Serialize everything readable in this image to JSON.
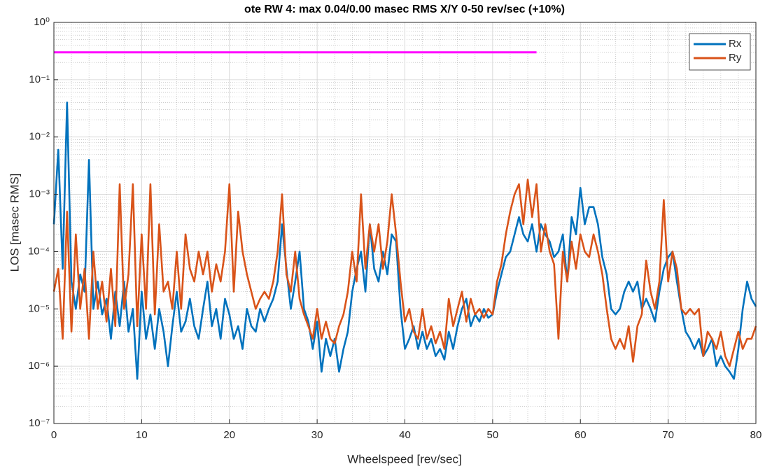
{
  "chart_data": {
    "type": "line",
    "title": "ote RW 4: max 0.04/0.00 masec RMS X/Y 0-50 rev/sec (+10%)",
    "x_label": "Wheelspeed [rev/sec]",
    "y_label": "LOS [masec RMS]",
    "log_y": true,
    "grid": true,
    "minor_grid": true,
    "legend": "northeast",
    "xlim": [
      0,
      80
    ],
    "xticks": [
      0,
      10,
      20,
      30,
      40,
      50,
      60,
      70,
      80
    ],
    "ylim": [
      1e-07,
      1
    ],
    "yticks": [
      {
        "value": 1e-07,
        "label": "10⁻⁷"
      },
      {
        "value": 1e-06,
        "label": "10⁻⁶"
      },
      {
        "value": 1e-05,
        "label": "10⁻⁵"
      },
      {
        "value": 0.0001,
        "label": "10⁻⁴"
      },
      {
        "value": 0.001,
        "label": "10⁻³"
      },
      {
        "value": 0.01,
        "label": "10⁻²"
      },
      {
        "value": 0.1,
        "label": "10⁻¹"
      },
      {
        "value": 1,
        "label": "10⁰"
      }
    ],
    "reference_line": {
      "x": [
        0,
        55
      ],
      "y": 0.3,
      "color": "#ff00ff"
    },
    "x": [
      0,
      0.5,
      1,
      1.5,
      2,
      2.5,
      3,
      3.5,
      4,
      4.5,
      5,
      5.5,
      6,
      6.5,
      7,
      7.5,
      8,
      8.5,
      9,
      9.5,
      10,
      10.5,
      11,
      11.5,
      12,
      12.5,
      13,
      13.5,
      14,
      14.5,
      15,
      15.5,
      16,
      16.5,
      17,
      17.5,
      18,
      18.5,
      19,
      19.5,
      20,
      20.5,
      21,
      21.5,
      22,
      22.5,
      23,
      23.5,
      24,
      24.5,
      25,
      25.5,
      26,
      26.5,
      27,
      27.5,
      28,
      28.5,
      29,
      29.5,
      30,
      30.5,
      31,
      31.5,
      32,
      32.5,
      33,
      33.5,
      34,
      34.5,
      35,
      35.5,
      36,
      36.5,
      37,
      37.5,
      38,
      38.5,
      39,
      39.5,
      40,
      40.5,
      41,
      41.5,
      42,
      42.5,
      43,
      43.5,
      44,
      44.5,
      45,
      45.5,
      46,
      46.5,
      47,
      47.5,
      48,
      48.5,
      49,
      49.5,
      50,
      50.5,
      51,
      51.5,
      52,
      52.5,
      53,
      53.5,
      54,
      54.5,
      55,
      55.5,
      56,
      56.5,
      57,
      57.5,
      58,
      58.5,
      59,
      59.5,
      60,
      60.5,
      61,
      61.5,
      62,
      62.5,
      63,
      63.5,
      64,
      64.5,
      65,
      65.5,
      66,
      66.5,
      67,
      67.5,
      68,
      68.5,
      69,
      69.5,
      70,
      70.5,
      71,
      71.5,
      72,
      72.5,
      73,
      73.5,
      74,
      74.5,
      75,
      75.5,
      76,
      76.5,
      77,
      77.5,
      78,
      78.5,
      79,
      79.5,
      80
    ],
    "series": [
      {
        "name": "Rx",
        "color": "#0072bd",
        "values": [
          0.0003,
          0.006,
          5e-05,
          0.04,
          3e-05,
          1e-05,
          4e-05,
          2e-05,
          0.004,
          1e-05,
          3e-05,
          8e-06,
          1.5e-05,
          3e-06,
          2e-05,
          5e-06,
          3e-05,
          4e-06,
          1e-05,
          6e-07,
          2e-05,
          3e-06,
          8e-06,
          2e-06,
          1e-05,
          4e-06,
          1e-06,
          5e-06,
          2e-05,
          4e-06,
          6e-06,
          1.5e-05,
          5e-06,
          3e-06,
          1e-05,
          3e-05,
          5e-06,
          1e-05,
          3e-06,
          1.5e-05,
          8e-06,
          3e-06,
          5e-06,
          2e-06,
          1e-05,
          5e-06,
          4e-06,
          1e-05,
          6e-06,
          1e-05,
          1.5e-05,
          3e-05,
          0.0003,
          5e-05,
          1e-05,
          3e-05,
          0.0001,
          1e-05,
          6e-06,
          2e-06,
          6e-06,
          8e-07,
          3e-06,
          1.5e-06,
          3e-06,
          8e-07,
          2e-06,
          4e-06,
          2e-05,
          5e-05,
          0.0001,
          2e-05,
          0.0003,
          5e-05,
          3e-05,
          0.0001,
          4e-05,
          0.0002,
          0.00015,
          1e-05,
          2e-06,
          3e-06,
          5e-06,
          2e-06,
          4e-06,
          2e-06,
          3e-06,
          1.5e-06,
          2e-06,
          1.3e-06,
          4e-06,
          2e-06,
          5e-06,
          1e-05,
          1.5e-05,
          5e-06,
          8e-06,
          6e-06,
          1e-05,
          7e-06,
          8e-06,
          2e-05,
          4e-05,
          8e-05,
          0.0001,
          0.0002,
          0.0004,
          0.0002,
          0.00015,
          0.0003,
          0.0001,
          0.0003,
          0.0002,
          0.00015,
          8e-05,
          0.0001,
          0.0002,
          3e-05,
          0.0004,
          0.0002,
          0.0013,
          0.0003,
          0.0006,
          0.0006,
          0.0003,
          8e-05,
          4e-05,
          1e-05,
          8e-06,
          1e-05,
          2e-05,
          3e-05,
          2e-05,
          3e-05,
          1e-05,
          1.5e-05,
          1e-05,
          6e-06,
          2e-05,
          5e-05,
          8e-05,
          0.0001,
          3e-05,
          1e-05,
          4e-06,
          3e-06,
          2e-06,
          3e-06,
          1.5e-06,
          2e-06,
          3e-06,
          1e-06,
          1.5e-06,
          1e-06,
          8e-07,
          6e-07,
          2e-06,
          1e-05,
          3e-05,
          1.5e-05,
          1.1e-05
        ]
      },
      {
        "name": "Ry",
        "color": "#d95319",
        "values": [
          2e-05,
          5e-05,
          3e-06,
          0.0005,
          4e-06,
          0.0002,
          1e-05,
          5e-05,
          3e-06,
          0.0001,
          1e-05,
          3e-05,
          6e-06,
          5e-05,
          5e-06,
          0.0015,
          1e-05,
          4e-05,
          0.0015,
          5e-06,
          0.0002,
          1e-05,
          0.0015,
          8e-06,
          0.0003,
          2e-05,
          3e-05,
          1e-05,
          0.0001,
          1e-05,
          0.0002,
          5e-05,
          3e-05,
          0.0001,
          4e-05,
          0.0001,
          2e-05,
          6e-05,
          3e-05,
          0.0001,
          0.0015,
          2e-05,
          0.0005,
          0.0001,
          4e-05,
          2e-05,
          1e-05,
          1.5e-05,
          2e-05,
          1.5e-05,
          3e-05,
          0.0001,
          0.001,
          4e-05,
          2e-05,
          0.0001,
          1.5e-05,
          8e-06,
          5e-06,
          3e-06,
          1e-05,
          3e-06,
          6e-06,
          3e-06,
          2.5e-06,
          5e-06,
          8e-06,
          2e-05,
          0.0001,
          3e-05,
          0.001,
          5e-05,
          0.0003,
          0.0001,
          0.0003,
          5e-05,
          0.00015,
          0.001,
          0.0002,
          3e-05,
          6e-06,
          1e-05,
          4e-06,
          3e-06,
          1e-05,
          3e-06,
          5e-06,
          2.5e-06,
          4e-06,
          2e-06,
          1.5e-05,
          5e-06,
          1e-05,
          2e-05,
          6e-06,
          1.5e-05,
          8e-06,
          1e-05,
          7e-06,
          1e-05,
          8e-06,
          3e-05,
          6e-05,
          0.0002,
          0.0005,
          0.001,
          0.0015,
          0.0003,
          0.0018,
          0.0004,
          0.0015,
          0.0001,
          0.0003,
          0.0001,
          6e-05,
          3e-06,
          0.0001,
          3e-05,
          0.00015,
          5e-05,
          0.0002,
          0.0001,
          8e-05,
          0.0002,
          0.0001,
          4e-05,
          1e-05,
          3e-06,
          2e-06,
          3e-06,
          2e-06,
          5e-06,
          1.2e-06,
          5e-06,
          8e-06,
          7e-05,
          2e-05,
          1e-05,
          3e-05,
          0.0008,
          3e-05,
          0.0001,
          5e-05,
          1e-05,
          8e-06,
          1e-05,
          8e-06,
          1e-05,
          1.5e-06,
          4e-06,
          3e-06,
          2e-06,
          4e-06,
          1.5e-06,
          1e-06,
          2e-06,
          4e-06,
          2e-06,
          3e-06,
          3e-06,
          5e-06
        ]
      }
    ]
  }
}
